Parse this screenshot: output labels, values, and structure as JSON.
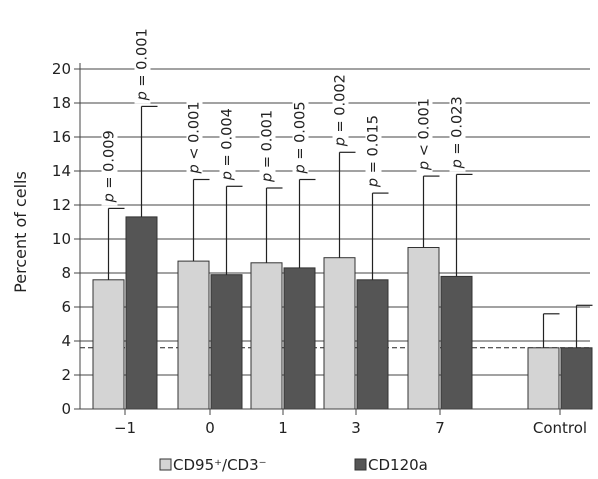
{
  "chart_data": {
    "type": "bar",
    "categories": [
      "−1",
      "0",
      "1",
      "3",
      "7",
      "Control"
    ],
    "series": [
      {
        "name": "CD95⁺/CD3⁻",
        "color": "#d4d4d4",
        "values": [
          7.6,
          8.7,
          8.6,
          8.9,
          9.5,
          3.6
        ],
        "errors": [
          11.8,
          13.5,
          13.0,
          15.1,
          13.7,
          5.6
        ]
      },
      {
        "name": "CD120a",
        "color": "#555555",
        "values": [
          11.3,
          7.9,
          8.3,
          7.6,
          7.8,
          3.6
        ],
        "errors": [
          17.8,
          13.1,
          13.5,
          12.7,
          13.8,
          6.1
        ]
      }
    ],
    "annotations": [
      [
        "p = 0.009",
        "p = 0.001"
      ],
      [
        "p < 0.001",
        "p = 0.004"
      ],
      [
        "p = 0.001",
        "p = 0.005"
      ],
      [
        "p = 0.002",
        "p = 0.015"
      ],
      [
        "p < 0.001",
        "p = 0.023"
      ],
      [
        "",
        ""
      ]
    ],
    "reference_line": 3.6,
    "ylabel": "Percent of cells",
    "xlabel": "",
    "ylim": [
      0,
      20
    ],
    "yticks": [
      0,
      2,
      4,
      6,
      8,
      10,
      12,
      14,
      16,
      18,
      20
    ],
    "grid": true,
    "legend_position": "bottom"
  }
}
